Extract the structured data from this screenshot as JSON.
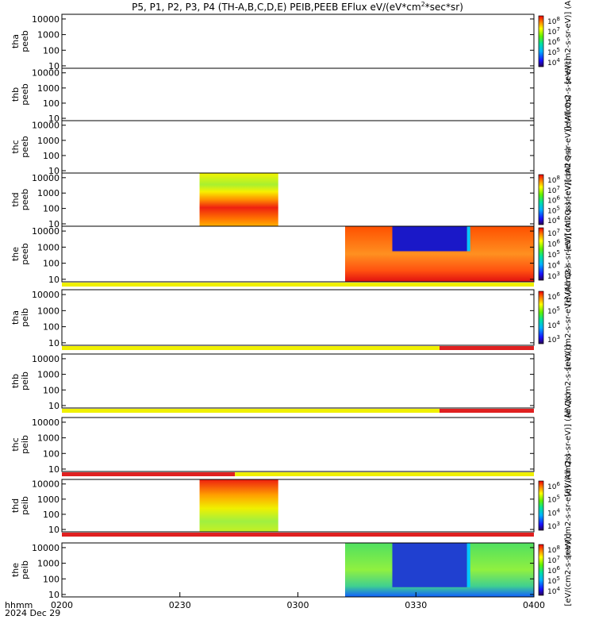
{
  "chart_data": {
    "type": "heatmap",
    "title": "P5, P1, P2, P3, P4 (TH-A,B,C,D,E) PEIB,PEEB EFlux eV/(eV*cm",
    "title_sup": "2",
    "title_end": "*sec*sr)",
    "x_axis": {
      "label": "hhmm",
      "date": "2024 Dec 29",
      "range": [
        "0200",
        "0400"
      ],
      "ticks": [
        "0200",
        "0230",
        "0300",
        "0330",
        "0400"
      ]
    },
    "y_axis": {
      "scale": "log",
      "range": [
        7,
        20000
      ],
      "ticks": [
        "10",
        "100",
        "1000",
        "10000"
      ]
    },
    "panels": [
      {
        "probe": "tha",
        "instrument": "peeb",
        "colorbar": true,
        "cb_ticks": [
          "10",
          "10",
          "10",
          "10",
          "10"
        ],
        "cb_exps": [
          "8",
          "7",
          "6",
          "5",
          "4"
        ],
        "cb_label": "[eV/(cm2-s-sr-eV)] (Al"
      },
      {
        "probe": "thb",
        "instrument": "peeb",
        "colorbar": false,
        "cb_label": "[eV/(cm2-s-sr-eV)]"
      },
      {
        "probe": "thc",
        "instrument": "peeb",
        "colorbar": false,
        "cb_label": "[eV/(cm2-s-sr-eV)] (All Qs)"
      },
      {
        "probe": "thd",
        "instrument": "peeb",
        "colorbar": true,
        "cb_ticks": [
          "10",
          "10",
          "10",
          "10",
          "10"
        ],
        "cb_exps": [
          "8",
          "7",
          "6",
          "5",
          "4"
        ],
        "cb_label": "[eV/(cm2-s-sr-eV)] (All Qs)"
      },
      {
        "probe": "the",
        "instrument": "peeb",
        "colorbar": true,
        "cb_ticks": [
          "10",
          "10",
          "10",
          "10",
          "10"
        ],
        "cb_exps": [
          "7",
          "6",
          "5",
          "4",
          "3"
        ],
        "cb_label": "[eV/(cm2-s-sr-eV)] (All Qs)"
      },
      {
        "probe": "tha",
        "instrument": "peib",
        "colorbar": true,
        "cb_ticks": [
          "10",
          "10",
          "10",
          "10"
        ],
        "cb_exps": [
          "6",
          "5",
          "4",
          "3"
        ],
        "cb_label": "[eV/(cm2-s-sr-eV)] (All Qs)"
      },
      {
        "probe": "thb",
        "instrument": "peib",
        "colorbar": false,
        "cb_label": "[eV/(cm2-s-sr-eV)]"
      },
      {
        "probe": "thc",
        "instrument": "peib",
        "colorbar": false,
        "cb_label": "[eV/(cm2-s-sr-eV)] (All Qs)"
      },
      {
        "probe": "thd",
        "instrument": "peib",
        "colorbar": true,
        "cb_ticks": [
          "10",
          "10",
          "10",
          "10"
        ],
        "cb_exps": [
          "6",
          "5",
          "4",
          "3"
        ],
        "cb_label": "[eV/(cm2-s-sr-eV)] (All Qs)"
      },
      {
        "probe": "the",
        "instrument": "peib",
        "colorbar": true,
        "cb_ticks": [
          "10",
          "10",
          "10",
          "10",
          "10"
        ],
        "cb_exps": [
          "8",
          "7",
          "6",
          "5",
          "4"
        ],
        "cb_label": "[eV/(cm2-s-sr-eV)]"
      }
    ],
    "mode_bars": [
      {
        "after_panel": 4,
        "segments": [
          {
            "from": "0200",
            "to": "0400",
            "color": "#f0f000"
          }
        ]
      },
      {
        "after_panel": 5,
        "segments": [
          {
            "from": "0200",
            "to": "0336",
            "color": "#f0f000"
          },
          {
            "from": "0336",
            "to": "0400",
            "color": "#e02020"
          }
        ]
      },
      {
        "after_panel": 6,
        "segments": [
          {
            "from": "0200",
            "to": "0336",
            "color": "#f0f000"
          },
          {
            "from": "0336",
            "to": "0400",
            "color": "#e02020"
          }
        ]
      },
      {
        "after_panel": 7,
        "segments": [
          {
            "from": "0200",
            "to": "0244",
            "color": "#e02020"
          },
          {
            "from": "0244",
            "to": "0400",
            "color": "#f0f000"
          }
        ]
      },
      {
        "after_panel": 8,
        "segments": [
          {
            "from": "0200",
            "to": "0400",
            "color": "#e02020"
          }
        ]
      }
    ],
    "spectrogram_blocks": [
      {
        "panel": 3,
        "from": "0235",
        "to": "0255",
        "note": "low energy red/orange, upper yellow-green"
      },
      {
        "panel": 4,
        "from": "0312",
        "to": "0400",
        "note": "orange-red with blue quiet region 0324-0343"
      },
      {
        "panel": 8,
        "from": "0235",
        "to": "0255",
        "note": "red top, yellow-green middle"
      },
      {
        "panel": 9,
        "from": "0312",
        "to": "0400",
        "note": "green with blue region 0324-0343, red low energy"
      }
    ]
  }
}
